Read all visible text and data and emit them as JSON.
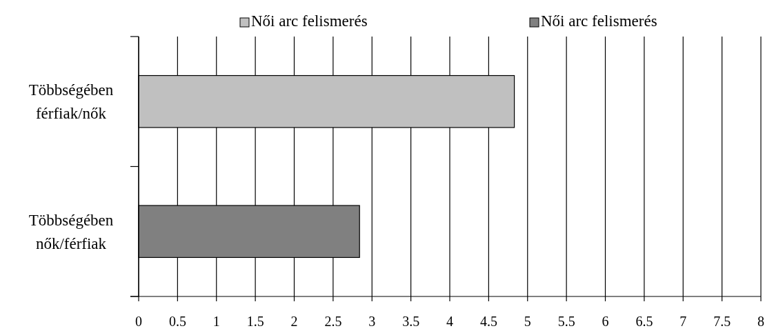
{
  "chart_data": {
    "type": "bar",
    "orientation": "horizontal",
    "stacked": true,
    "categories": [
      "Többségében férfiak/nők",
      "Többségében nők/férfiak"
    ],
    "series": [
      {
        "name": "Női arc felismerés",
        "color": "#c0c0c0",
        "values": [
          4.83,
          null
        ]
      },
      {
        "name": "Női arc felismerés",
        "color": "#808080",
        "values": [
          null,
          2.84
        ]
      }
    ],
    "xlim": [
      0,
      8
    ],
    "xticks": [
      0,
      0.5,
      1,
      1.5,
      2,
      2.5,
      3,
      3.5,
      4,
      4.5,
      5,
      5.5,
      6,
      6.5,
      7,
      7.5,
      8
    ],
    "grid": "x",
    "legend": "top"
  }
}
